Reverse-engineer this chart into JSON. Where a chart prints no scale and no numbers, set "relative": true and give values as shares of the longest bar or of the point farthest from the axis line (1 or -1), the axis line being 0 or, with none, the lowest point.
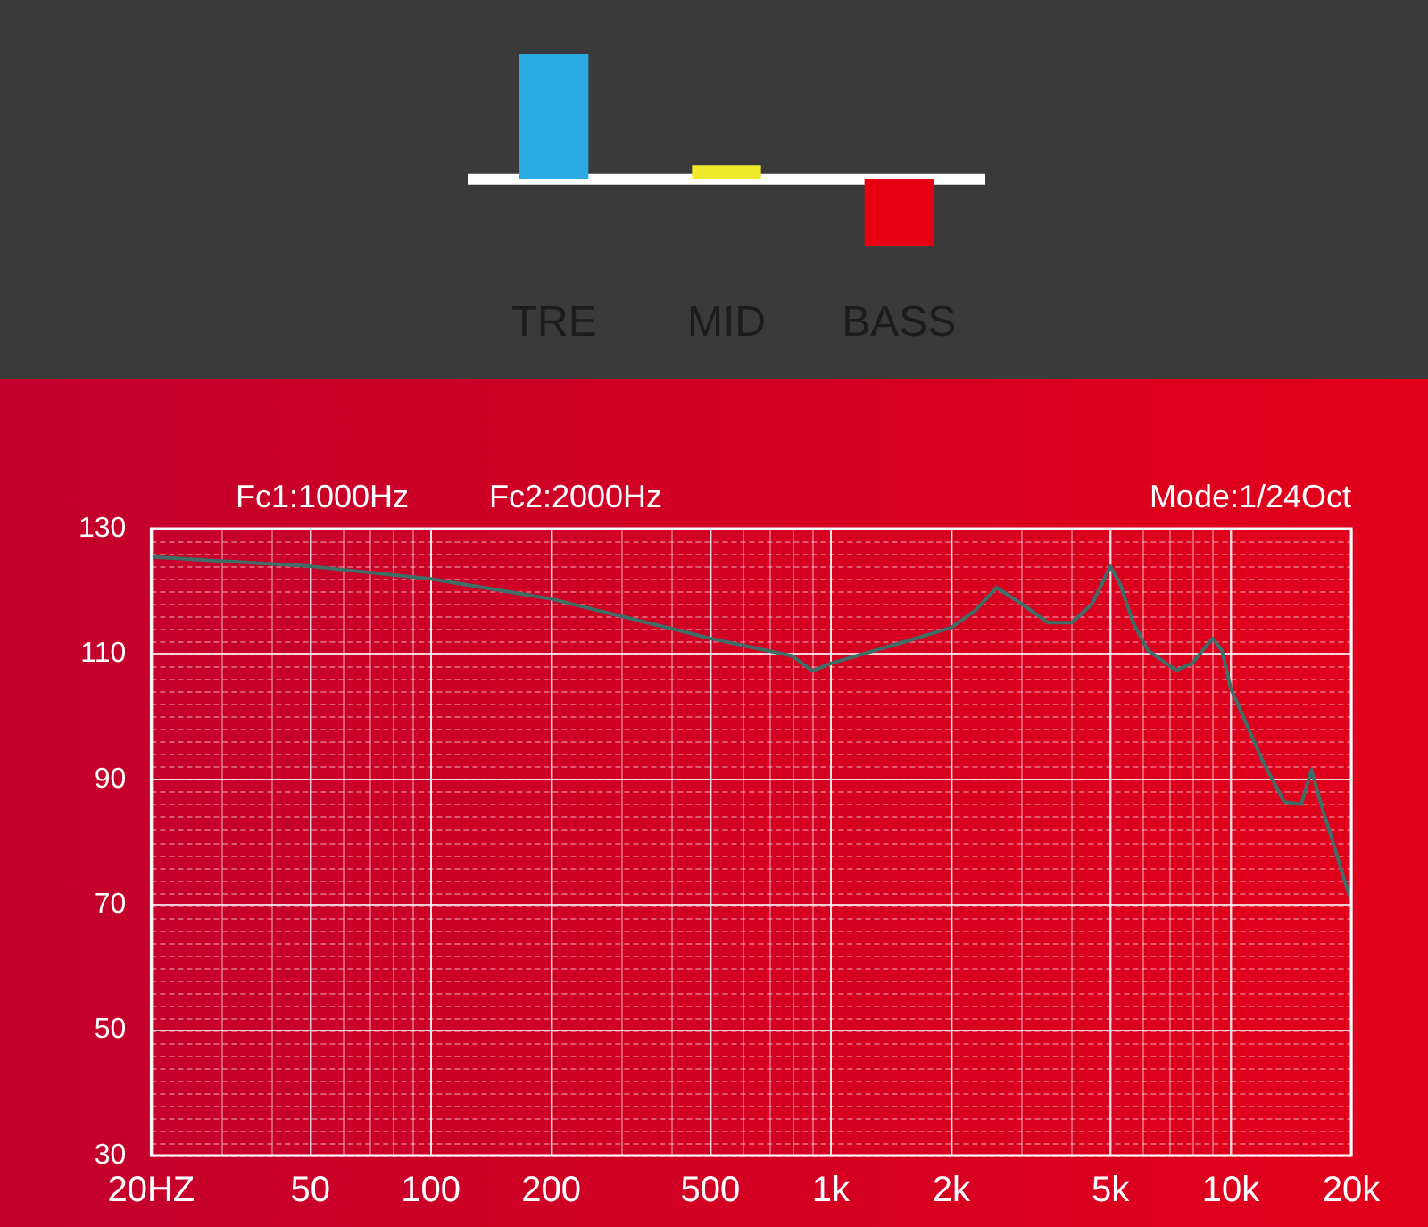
{
  "chart_data": [
    {
      "type": "bar",
      "relative": true,
      "categories": [
        "TRE",
        "MID",
        "BASS"
      ],
      "values": [
        1,
        0.11,
        -0.53
      ],
      "colors": [
        "#29abe2",
        "#f0e82a",
        "#e60012"
      ],
      "ref_lines": [
        {
          "axis": "y",
          "value": 0,
          "color": "#ffffff"
        }
      ]
    },
    {
      "type": "line",
      "log": "x",
      "x": [
        20,
        50,
        100,
        200,
        500,
        800,
        900,
        1000,
        1500,
        2000,
        2300,
        2600,
        3000,
        3500,
        4000,
        4500,
        5000,
        5300,
        5700,
        6200,
        7300,
        8000,
        9000,
        9500,
        10000,
        11000,
        12000,
        13600,
        15000,
        15900,
        17000,
        18000,
        19000,
        20000
      ],
      "series": [
        {
          "color": "#3d6e68",
          "values": [
            125.5,
            124,
            122,
            118.8,
            112.5,
            109.7,
            107.3,
            108.5,
            111.8,
            114.2,
            117,
            120.6,
            118,
            115,
            115,
            118,
            124,
            121,
            115,
            110.6,
            107.4,
            108.5,
            112.5,
            110.6,
            104.5,
            98.5,
            93,
            86.4,
            86,
            91.5,
            85,
            80,
            75,
            70.6
          ]
        }
      ],
      "xlim": [
        20,
        20000
      ],
      "xticks": [
        {
          "value": 20,
          "label": "20HZ"
        },
        50,
        100,
        200,
        500,
        {
          "value": 1000,
          "label": "1k"
        },
        {
          "value": 2000,
          "label": "2k"
        },
        {
          "value": 5000,
          "label": "5k"
        },
        {
          "value": 10000,
          "label": "10k"
        },
        {
          "value": 20000,
          "label": "20k"
        }
      ],
      "ylim": [
        30,
        130
      ],
      "yticks": [
        30,
        50,
        70,
        90,
        110,
        130
      ],
      "grid": true,
      "marker": "none",
      "annotations": [
        "Fc1:1000Hz",
        "Fc2:2000Hz",
        "Mode:1/24Oct"
      ]
    }
  ]
}
